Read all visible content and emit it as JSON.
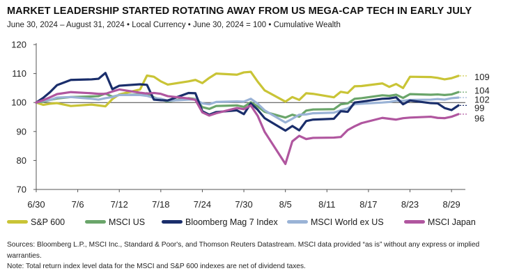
{
  "header": {
    "title": "MARKET LEADERSHIP STARTED ROTATING AWAY FROM US MEGA-CAP TECH IN EARLY JULY",
    "subtitle": "June 30, 2024 – August 31, 2024 • Local Currency • June 30, 2024 = 100 • Cumulative Wealth"
  },
  "footer": {
    "sources": "Sources: Bloomberg L.P., MSCI Inc., Standard & Poor's, and Thomson Reuters Datastream. MSCI data provided “as is” without any express or implied warranties.",
    "note": "Note: Total return index level data for the MSCI and S&P 600 indexes are net of dividend taxes."
  },
  "chart_data": {
    "type": "line",
    "title": "MARKET LEADERSHIP STARTED ROTATING AWAY FROM US MEGA-CAP TECH IN EARLY JULY",
    "subtitle": "June 30, 2024 – August 31, 2024 • Local Currency • June 30, 2024 = 100 • Cumulative Wealth",
    "xlabel": "",
    "ylabel": "",
    "ylim": [
      70,
      120
    ],
    "yticks": [
      70,
      80,
      90,
      100,
      110,
      120
    ],
    "xlim": [
      "2024-06-30",
      "2024-08-31"
    ],
    "xticks": [
      "6/30",
      "7/6",
      "7/12",
      "7/18",
      "7/24",
      "7/30",
      "8/5",
      "8/11",
      "8/17",
      "8/23",
      "8/29"
    ],
    "grid": false,
    "legend_position": "bottom",
    "series": [
      {
        "name": "S&P 600",
        "color": "#c9c436",
        "end_label": "109",
        "points": [
          [
            "2024-06-30",
            100
          ],
          [
            "2024-07-01",
            99.2
          ],
          [
            "2024-07-02",
            99.6
          ],
          [
            "2024-07-03",
            99.8
          ],
          [
            "2024-07-05",
            98.8
          ],
          [
            "2024-07-08",
            99.3
          ],
          [
            "2024-07-09",
            99.0
          ],
          [
            "2024-07-10",
            98.7
          ],
          [
            "2024-07-11",
            101.2
          ],
          [
            "2024-07-12",
            102.8
          ],
          [
            "2024-07-15",
            104.5
          ],
          [
            "2024-07-16",
            109.3
          ],
          [
            "2024-07-17",
            108.9
          ],
          [
            "2024-07-18",
            107.3
          ],
          [
            "2024-07-19",
            106.2
          ],
          [
            "2024-07-22",
            107.3
          ],
          [
            "2024-07-23",
            107.8
          ],
          [
            "2024-07-24",
            106.7
          ],
          [
            "2024-07-25",
            108.5
          ],
          [
            "2024-07-26",
            110.0
          ],
          [
            "2024-07-29",
            109.6
          ],
          [
            "2024-07-30",
            110.4
          ],
          [
            "2024-07-31",
            110.6
          ],
          [
            "2024-08-01",
            107.2
          ],
          [
            "2024-08-02",
            104.2
          ],
          [
            "2024-08-05",
            100.3
          ],
          [
            "2024-08-06",
            101.9
          ],
          [
            "2024-08-07",
            100.9
          ],
          [
            "2024-08-08",
            103.2
          ],
          [
            "2024-08-09",
            103.0
          ],
          [
            "2024-08-12",
            101.8
          ],
          [
            "2024-08-13",
            103.7
          ],
          [
            "2024-08-14",
            103.3
          ],
          [
            "2024-08-15",
            105.6
          ],
          [
            "2024-08-16",
            105.7
          ],
          [
            "2024-08-19",
            106.6
          ],
          [
            "2024-08-20",
            105.4
          ],
          [
            "2024-08-21",
            106.4
          ],
          [
            "2024-08-22",
            105.0
          ],
          [
            "2024-08-23",
            108.9
          ],
          [
            "2024-08-26",
            108.8
          ],
          [
            "2024-08-27",
            108.5
          ],
          [
            "2024-08-28",
            108.0
          ],
          [
            "2024-08-29",
            108.4
          ],
          [
            "2024-08-30",
            109.2
          ]
        ]
      },
      {
        "name": "MSCI US",
        "color": "#6aa56a",
        "end_label": "104",
        "points": [
          [
            "2024-06-30",
            100
          ],
          [
            "2024-07-01",
            100.3
          ],
          [
            "2024-07-02",
            100.9
          ],
          [
            "2024-07-03",
            101.4
          ],
          [
            "2024-07-05",
            101.9
          ],
          [
            "2024-07-08",
            102.1
          ],
          [
            "2024-07-09",
            102.2
          ],
          [
            "2024-07-10",
            103.1
          ],
          [
            "2024-07-11",
            102.0
          ],
          [
            "2024-07-12",
            102.6
          ],
          [
            "2024-07-15",
            102.8
          ],
          [
            "2024-07-16",
            103.2
          ],
          [
            "2024-07-17",
            101.8
          ],
          [
            "2024-07-18",
            101.0
          ],
          [
            "2024-07-19",
            100.4
          ],
          [
            "2024-07-22",
            101.5
          ],
          [
            "2024-07-23",
            101.2
          ],
          [
            "2024-07-24",
            98.4
          ],
          [
            "2024-07-25",
            97.8
          ],
          [
            "2024-07-26",
            98.8
          ],
          [
            "2024-07-29",
            99.0
          ],
          [
            "2024-07-30",
            98.5
          ],
          [
            "2024-07-31",
            100.1
          ],
          [
            "2024-08-01",
            98.6
          ],
          [
            "2024-08-02",
            96.8
          ],
          [
            "2024-08-05",
            94.8
          ],
          [
            "2024-08-06",
            95.8
          ],
          [
            "2024-08-07",
            95.1
          ],
          [
            "2024-08-08",
            97.2
          ],
          [
            "2024-08-09",
            97.6
          ],
          [
            "2024-08-12",
            97.7
          ],
          [
            "2024-08-13",
            99.4
          ],
          [
            "2024-08-14",
            99.7
          ],
          [
            "2024-08-15",
            101.3
          ],
          [
            "2024-08-16",
            101.5
          ],
          [
            "2024-08-19",
            102.5
          ],
          [
            "2024-08-20",
            102.3
          ],
          [
            "2024-08-21",
            102.7
          ],
          [
            "2024-08-22",
            101.6
          ],
          [
            "2024-08-23",
            102.9
          ],
          [
            "2024-08-26",
            102.7
          ],
          [
            "2024-08-27",
            102.8
          ],
          [
            "2024-08-28",
            102.6
          ],
          [
            "2024-08-29",
            102.8
          ],
          [
            "2024-08-30",
            103.6
          ]
        ]
      },
      {
        "name": "Bloomberg Mag 7 Index",
        "color": "#1a2e6b",
        "end_label": "99",
        "points": [
          [
            "2024-06-30",
            100
          ],
          [
            "2024-07-01",
            101.6
          ],
          [
            "2024-07-02",
            103.6
          ],
          [
            "2024-07-03",
            106.0
          ],
          [
            "2024-07-05",
            107.8
          ],
          [
            "2024-07-08",
            108.0
          ],
          [
            "2024-07-09",
            108.2
          ],
          [
            "2024-07-10",
            110.2
          ],
          [
            "2024-07-11",
            104.6
          ],
          [
            "2024-07-12",
            105.8
          ],
          [
            "2024-07-15",
            106.3
          ],
          [
            "2024-07-16",
            106.1
          ],
          [
            "2024-07-17",
            101.0
          ],
          [
            "2024-07-18",
            100.8
          ],
          [
            "2024-07-19",
            100.7
          ],
          [
            "2024-07-22",
            103.3
          ],
          [
            "2024-07-23",
            103.2
          ],
          [
            "2024-07-24",
            97.0
          ],
          [
            "2024-07-25",
            95.8
          ],
          [
            "2024-07-26",
            96.7
          ],
          [
            "2024-07-29",
            97.3
          ],
          [
            "2024-07-30",
            96.0
          ],
          [
            "2024-07-31",
            99.7
          ],
          [
            "2024-08-01",
            97.5
          ],
          [
            "2024-08-02",
            94.6
          ],
          [
            "2024-08-05",
            90.3
          ],
          [
            "2024-08-06",
            91.9
          ],
          [
            "2024-08-07",
            90.4
          ],
          [
            "2024-08-08",
            93.6
          ],
          [
            "2024-08-09",
            94.1
          ],
          [
            "2024-08-12",
            94.4
          ],
          [
            "2024-08-13",
            97.0
          ],
          [
            "2024-08-14",
            96.8
          ],
          [
            "2024-08-15",
            100.0
          ],
          [
            "2024-08-16",
            100.3
          ],
          [
            "2024-08-19",
            101.3
          ],
          [
            "2024-08-20",
            101.4
          ],
          [
            "2024-08-21",
            101.8
          ],
          [
            "2024-08-22",
            99.4
          ],
          [
            "2024-08-23",
            100.7
          ],
          [
            "2024-08-26",
            99.8
          ],
          [
            "2024-08-27",
            99.7
          ],
          [
            "2024-08-28",
            98.1
          ],
          [
            "2024-08-29",
            97.4
          ],
          [
            "2024-08-30",
            99.0
          ]
        ]
      },
      {
        "name": "MSCI World ex US",
        "color": "#9ab3d6",
        "end_label": "102",
        "points": [
          [
            "2024-06-30",
            100
          ],
          [
            "2024-07-01",
            100.6
          ],
          [
            "2024-07-02",
            100.9
          ],
          [
            "2024-07-03",
            101.7
          ],
          [
            "2024-07-05",
            101.9
          ],
          [
            "2024-07-08",
            101.3
          ],
          [
            "2024-07-09",
            101.0
          ],
          [
            "2024-07-10",
            101.5
          ],
          [
            "2024-07-11",
            101.9
          ],
          [
            "2024-07-12",
            102.6
          ],
          [
            "2024-07-15",
            102.6
          ],
          [
            "2024-07-16",
            102.3
          ],
          [
            "2024-07-17",
            101.6
          ],
          [
            "2024-07-18",
            101.3
          ],
          [
            "2024-07-19",
            100.6
          ],
          [
            "2024-07-22",
            101.0
          ],
          [
            "2024-07-23",
            101.1
          ],
          [
            "2024-07-24",
            99.7
          ],
          [
            "2024-07-25",
            99.4
          ],
          [
            "2024-07-26",
            100.2
          ],
          [
            "2024-07-29",
            100.4
          ],
          [
            "2024-07-30",
            100.3
          ],
          [
            "2024-07-31",
            101.3
          ],
          [
            "2024-08-01",
            99.6
          ],
          [
            "2024-08-02",
            97.3
          ],
          [
            "2024-08-05",
            93.1
          ],
          [
            "2024-08-06",
            94.4
          ],
          [
            "2024-08-07",
            95.8
          ],
          [
            "2024-08-08",
            95.9
          ],
          [
            "2024-08-09",
            96.3
          ],
          [
            "2024-08-12",
            96.5
          ],
          [
            "2024-08-13",
            97.3
          ],
          [
            "2024-08-14",
            98.0
          ],
          [
            "2024-08-15",
            99.4
          ],
          [
            "2024-08-16",
            99.6
          ],
          [
            "2024-08-19",
            100.0
          ],
          [
            "2024-08-20",
            100.2
          ],
          [
            "2024-08-21",
            100.6
          ],
          [
            "2024-08-22",
            100.6
          ],
          [
            "2024-08-23",
            100.9
          ],
          [
            "2024-08-26",
            101.0
          ],
          [
            "2024-08-27",
            101.2
          ],
          [
            "2024-08-28",
            101.0
          ],
          [
            "2024-08-29",
            101.5
          ],
          [
            "2024-08-30",
            101.7
          ]
        ]
      },
      {
        "name": "MSCI Japan",
        "color": "#b0569f",
        "end_label": "96",
        "points": [
          [
            "2024-06-30",
            100
          ],
          [
            "2024-07-01",
            100.8
          ],
          [
            "2024-07-02",
            101.8
          ],
          [
            "2024-07-03",
            102.9
          ],
          [
            "2024-07-05",
            103.6
          ],
          [
            "2024-07-08",
            103.2
          ],
          [
            "2024-07-09",
            103.0
          ],
          [
            "2024-07-10",
            103.0
          ],
          [
            "2024-07-11",
            103.8
          ],
          [
            "2024-07-12",
            104.5
          ],
          [
            "2024-07-15",
            103.4
          ],
          [
            "2024-07-16",
            103.1
          ],
          [
            "2024-07-17",
            103.3
          ],
          [
            "2024-07-18",
            103.0
          ],
          [
            "2024-07-19",
            102.2
          ],
          [
            "2024-07-22",
            101.4
          ],
          [
            "2024-07-23",
            100.9
          ],
          [
            "2024-07-24",
            96.6
          ],
          [
            "2024-07-25",
            95.5
          ],
          [
            "2024-07-26",
            96.3
          ],
          [
            "2024-07-29",
            98.1
          ],
          [
            "2024-07-30",
            97.7
          ],
          [
            "2024-07-31",
            99.0
          ],
          [
            "2024-08-01",
            95.4
          ],
          [
            "2024-08-02",
            89.9
          ],
          [
            "2024-08-05",
            78.8
          ],
          [
            "2024-08-06",
            86.6
          ],
          [
            "2024-08-07",
            88.5
          ],
          [
            "2024-08-08",
            87.4
          ],
          [
            "2024-08-09",
            87.8
          ],
          [
            "2024-08-12",
            87.9
          ],
          [
            "2024-08-13",
            88.1
          ],
          [
            "2024-08-14",
            90.5
          ],
          [
            "2024-08-15",
            91.8
          ],
          [
            "2024-08-16",
            92.9
          ],
          [
            "2024-08-19",
            94.7
          ],
          [
            "2024-08-20",
            94.4
          ],
          [
            "2024-08-21",
            94.1
          ],
          [
            "2024-08-22",
            94.6
          ],
          [
            "2024-08-23",
            94.8
          ],
          [
            "2024-08-26",
            95.1
          ],
          [
            "2024-08-27",
            94.7
          ],
          [
            "2024-08-28",
            94.6
          ],
          [
            "2024-08-29",
            95.1
          ],
          [
            "2024-08-30",
            96.0
          ]
        ]
      }
    ]
  }
}
